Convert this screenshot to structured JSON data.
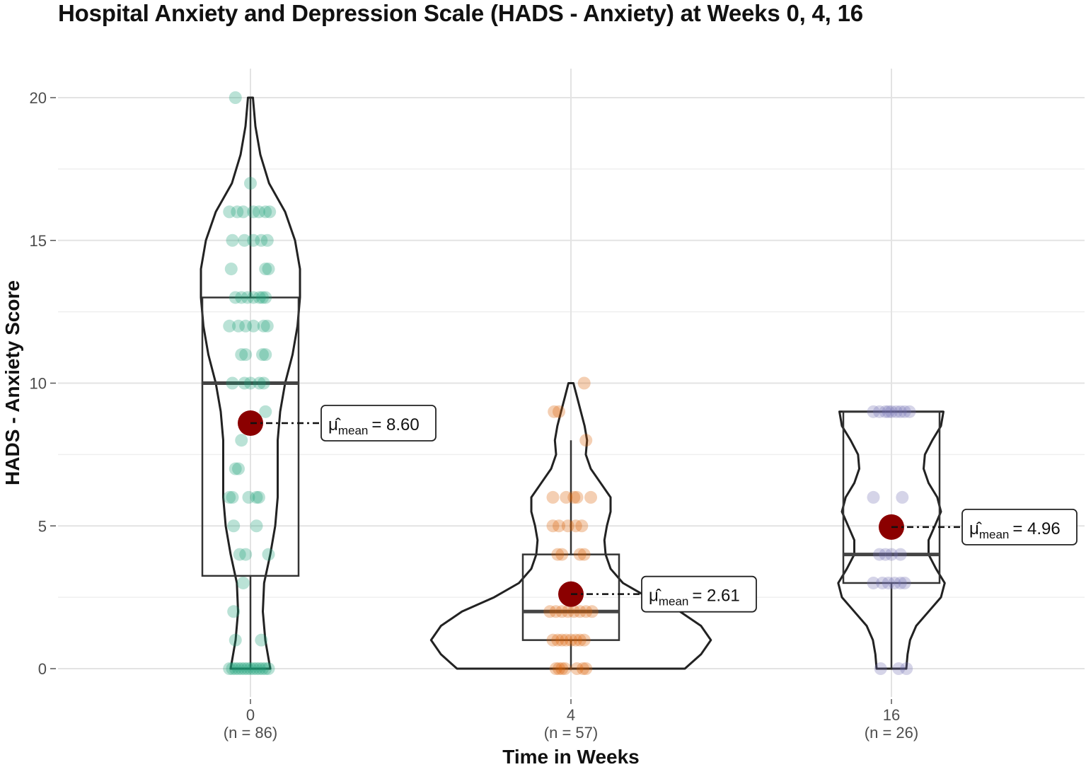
{
  "chart_data": {
    "type": "violin-box-scatter",
    "title": "Hospital Anxiety and Depression Scale (HADS - Anxiety) at Weeks 0, 4, 16",
    "xlabel": "Time in Weeks",
    "ylabel": "HADS - Anxiety Score",
    "ylim": [
      -1,
      21
    ],
    "yticks": [
      0,
      5,
      10,
      15,
      20
    ],
    "grid": true,
    "groups": [
      {
        "category": "0",
        "n_label": "(n = 86)",
        "color": "#1b9e77",
        "box": {
          "q1": 3.25,
          "median": 10,
          "q3": 13,
          "whisker_low": 0,
          "whisker_high": 20
        },
        "mean": 8.6,
        "mean_label_mu": "μ̂",
        "mean_label_sub": "mean",
        "mean_label_value": "= 8.60",
        "violin_density": [
          [
            0,
            0.16
          ],
          [
            1,
            0.12
          ],
          [
            2,
            0.1
          ],
          [
            3,
            0.11
          ],
          [
            4,
            0.16
          ],
          [
            5,
            0.2
          ],
          [
            6,
            0.22
          ],
          [
            7,
            0.22
          ],
          [
            8,
            0.22
          ],
          [
            9,
            0.24
          ],
          [
            10,
            0.28
          ],
          [
            11,
            0.34
          ],
          [
            12,
            0.38
          ],
          [
            13,
            0.4
          ],
          [
            14,
            0.4
          ],
          [
            15,
            0.36
          ],
          [
            16,
            0.28
          ],
          [
            17,
            0.15
          ],
          [
            18,
            0.08
          ],
          [
            19,
            0.04
          ],
          [
            20,
            0.02
          ]
        ],
        "points": [
          [
            20,
            -0.25
          ],
          [
            17,
            0
          ],
          [
            16,
            -0.35
          ],
          [
            16,
            -0.22
          ],
          [
            16,
            -0.12
          ],
          [
            16,
            0.05
          ],
          [
            16,
            0.14
          ],
          [
            16,
            0.25
          ],
          [
            16,
            0.32
          ],
          [
            15,
            -0.3
          ],
          [
            15,
            -0.1
          ],
          [
            15,
            0.05
          ],
          [
            15,
            0.18
          ],
          [
            15,
            0.28
          ],
          [
            14,
            -0.32
          ],
          [
            14,
            0.25
          ],
          [
            14,
            0.3
          ],
          [
            13,
            -0.25
          ],
          [
            13,
            -0.15
          ],
          [
            13,
            -0.05
          ],
          [
            13,
            0.05
          ],
          [
            13,
            0.15
          ],
          [
            13,
            0.2
          ],
          [
            13,
            0.25
          ],
          [
            12,
            -0.35
          ],
          [
            12,
            -0.2
          ],
          [
            12,
            -0.08
          ],
          [
            12,
            0.05
          ],
          [
            12,
            0.22
          ],
          [
            12,
            0.28
          ],
          [
            11,
            -0.15
          ],
          [
            11,
            -0.08
          ],
          [
            11,
            0.2
          ],
          [
            11,
            0.25
          ],
          [
            10,
            -0.3
          ],
          [
            10,
            -0.1
          ],
          [
            10,
            0.0
          ],
          [
            10,
            0.15
          ],
          [
            10,
            0.22
          ],
          [
            9,
            0.25
          ],
          [
            8,
            -0.15
          ],
          [
            7,
            -0.25
          ],
          [
            7,
            -0.2
          ],
          [
            6,
            -0.35
          ],
          [
            6,
            -0.3
          ],
          [
            6,
            -0.03
          ],
          [
            6,
            0.1
          ],
          [
            6,
            0.14
          ],
          [
            5,
            -0.28
          ],
          [
            5,
            0.1
          ],
          [
            4,
            -0.18
          ],
          [
            4,
            -0.08
          ],
          [
            4,
            0.3
          ],
          [
            3,
            -0.12
          ],
          [
            2,
            -0.28
          ],
          [
            1,
            -0.25
          ],
          [
            1,
            0.18
          ],
          [
            0,
            -0.35
          ],
          [
            0,
            -0.3
          ],
          [
            0,
            -0.25
          ],
          [
            0,
            -0.2
          ],
          [
            0,
            -0.15
          ],
          [
            0,
            -0.1
          ],
          [
            0,
            -0.05
          ],
          [
            0,
            0.0
          ],
          [
            0,
            0.05
          ],
          [
            0,
            0.1
          ],
          [
            0,
            0.15
          ],
          [
            0,
            0.2
          ],
          [
            0,
            0.25
          ],
          [
            0,
            0.3
          ]
        ]
      },
      {
        "category": "4",
        "n_label": "(n = 57)",
        "color": "#d95f02",
        "box": {
          "q1": 1,
          "median": 2,
          "q3": 4,
          "whisker_low": 0,
          "whisker_high": 8
        },
        "mean": 2.61,
        "mean_label_mu": "μ̂",
        "mean_label_sub": "mean",
        "mean_label_value": "= 2.61",
        "violin_density": [
          [
            0,
            0.92
          ],
          [
            0.5,
            1.05
          ],
          [
            1,
            1.13
          ],
          [
            1.5,
            1.05
          ],
          [
            2,
            0.88
          ],
          [
            2.5,
            0.62
          ],
          [
            3,
            0.42
          ],
          [
            3.5,
            0.32
          ],
          [
            4,
            0.28
          ],
          [
            4.5,
            0.27
          ],
          [
            5,
            0.29
          ],
          [
            5.5,
            0.32
          ],
          [
            6,
            0.32
          ],
          [
            6.5,
            0.24
          ],
          [
            7,
            0.16
          ],
          [
            7.5,
            0.12
          ],
          [
            8,
            0.13
          ],
          [
            8.5,
            0.11
          ],
          [
            9,
            0.08
          ],
          [
            9.5,
            0.05
          ],
          [
            10,
            0.02
          ]
        ],
        "points": [
          [
            10,
            0.22
          ],
          [
            9,
            -0.28
          ],
          [
            9,
            -0.2
          ],
          [
            8,
            0.25
          ],
          [
            6,
            -0.3
          ],
          [
            6,
            -0.08
          ],
          [
            6,
            0.05
          ],
          [
            6,
            0.1
          ],
          [
            6,
            0.33
          ],
          [
            5,
            -0.3
          ],
          [
            5,
            -0.2
          ],
          [
            5,
            -0.05
          ],
          [
            5,
            0.08
          ],
          [
            5,
            0.18
          ],
          [
            4,
            -0.22
          ],
          [
            4,
            -0.15
          ],
          [
            4,
            0.15
          ],
          [
            4,
            0.22
          ],
          [
            2,
            -0.35
          ],
          [
            2,
            -0.25
          ],
          [
            2,
            -0.15
          ],
          [
            2,
            -0.05
          ],
          [
            2,
            0.05
          ],
          [
            2,
            0.15
          ],
          [
            2,
            0.25
          ],
          [
            2,
            0.35
          ],
          [
            1,
            -0.3
          ],
          [
            1,
            -0.22
          ],
          [
            1,
            -0.15
          ],
          [
            1,
            -0.08
          ],
          [
            1,
            0.0
          ],
          [
            1,
            0.08
          ],
          [
            1,
            0.15
          ],
          [
            1,
            0.22
          ],
          [
            0,
            -0.25
          ],
          [
            0,
            -0.2
          ],
          [
            0,
            -0.15
          ],
          [
            0,
            -0.1
          ],
          [
            0,
            0.1
          ],
          [
            0,
            0.2
          ],
          [
            0,
            0.25
          ]
        ]
      },
      {
        "category": "16",
        "n_label": "(n = 26)",
        "color": "#7570b3",
        "box": {
          "q1": 3,
          "median": 4,
          "q3": 9,
          "whisker_low": 0,
          "whisker_high": 9
        },
        "mean": 4.96,
        "mean_label_mu": "μ̂",
        "mean_label_sub": "mean",
        "mean_label_value": "= 4.96",
        "violin_density": [
          [
            0,
            0.12
          ],
          [
            0.5,
            0.13
          ],
          [
            1,
            0.15
          ],
          [
            1.5,
            0.2
          ],
          [
            2,
            0.3
          ],
          [
            2.5,
            0.4
          ],
          [
            3,
            0.43
          ],
          [
            3.5,
            0.36
          ],
          [
            4,
            0.3
          ],
          [
            4.5,
            0.3
          ],
          [
            5,
            0.35
          ],
          [
            5.5,
            0.4
          ],
          [
            6,
            0.37
          ],
          [
            6.5,
            0.3
          ],
          [
            7,
            0.26
          ],
          [
            7.5,
            0.27
          ],
          [
            8,
            0.33
          ],
          [
            8.5,
            0.4
          ],
          [
            9,
            0.42
          ]
        ],
        "points": [
          [
            9,
            -0.3
          ],
          [
            9,
            -0.2
          ],
          [
            9,
            -0.1
          ],
          [
            9,
            -0.05
          ],
          [
            9,
            0.0
          ],
          [
            9,
            0.08
          ],
          [
            9,
            0.15
          ],
          [
            9,
            0.22
          ],
          [
            9,
            0.3
          ],
          [
            6,
            -0.3
          ],
          [
            6,
            0.18
          ],
          [
            4,
            -0.2
          ],
          [
            4,
            -0.1
          ],
          [
            4,
            0.0
          ],
          [
            4,
            0.15
          ],
          [
            3,
            -0.3
          ],
          [
            3,
            -0.15
          ],
          [
            3,
            -0.05
          ],
          [
            3,
            0.05
          ],
          [
            3,
            0.15
          ],
          [
            3,
            0.22
          ],
          [
            0,
            -0.18
          ],
          [
            0,
            0.12
          ],
          [
            0,
            0.25
          ]
        ]
      }
    ]
  }
}
